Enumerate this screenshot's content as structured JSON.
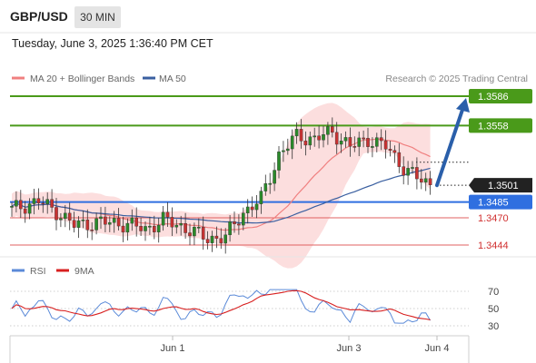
{
  "header": {
    "symbol": "GBP/USD",
    "timeframe": "30 MIN",
    "timestamp": "Tuesday, June 3, 2025 1:36:40 PM CET"
  },
  "legend": {
    "ma20": "MA 20 + Bollinger Bands",
    "ma50": "MA 50",
    "credit": "Research © 2025 Trading Central"
  },
  "colors": {
    "ma20": "#f08080",
    "ma50": "#3a5fa0",
    "bb_fill": "#fbd3d3",
    "bull": "#2a8a2a",
    "bear": "#c83232",
    "level_green": "#4a9a1a",
    "level_blue": "#2f6fe0",
    "level_red": "#e06060",
    "rsi": "#5b8ad8",
    "rsi_ma": "#d82020",
    "arrow": "#2a5faa"
  },
  "chart_data": [
    {
      "type": "candlestick",
      "series_names": [
        "MA 20 + Bollinger Bands",
        "MA 50"
      ],
      "ylim": [
        1.343,
        1.359
      ],
      "levels": [
        {
          "label": "1.3586",
          "value": 1.3586,
          "kind": "resistance"
        },
        {
          "label": "1.3558",
          "value": 1.3558,
          "kind": "resistance"
        },
        {
          "label": "1.3501",
          "value": 1.3501,
          "kind": "last"
        },
        {
          "label": "1.3485",
          "value": 1.3485,
          "kind": "pivot"
        },
        {
          "label": "1.3470",
          "value": 1.347,
          "kind": "support"
        },
        {
          "label": "1.3444",
          "value": 1.3444,
          "kind": "support"
        }
      ],
      "x_ticks": [
        "Jun 1",
        "Jun 3",
        "Jun 4"
      ],
      "projection": {
        "from": 1.3501,
        "to": 1.3586
      }
    },
    {
      "type": "line",
      "title": "RSI",
      "series_names": [
        "RSI",
        "9MA"
      ],
      "ylim": [
        25,
        80
      ],
      "y_ticks": [
        "70",
        "50",
        "30"
      ],
      "y_tick_values": [
        70,
        50,
        30
      ]
    }
  ]
}
